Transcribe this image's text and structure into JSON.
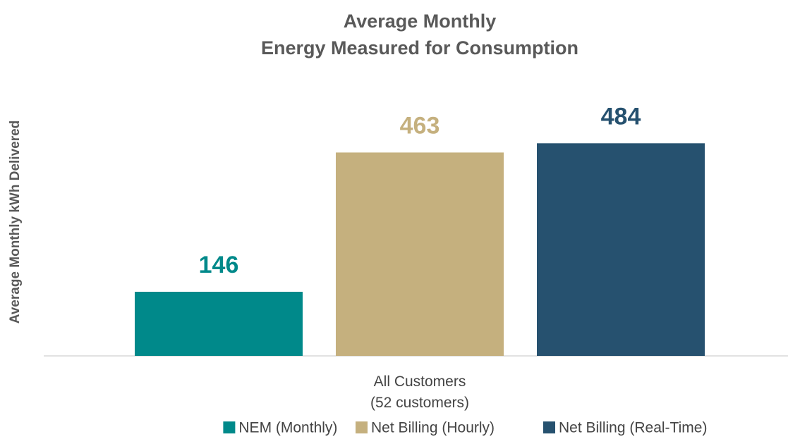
{
  "chart_data": {
    "type": "bar",
    "title": [
      "Average Monthly",
      "Energy Measured for Consumption"
    ],
    "y_label": "Average Monthly kWh Delivered",
    "categories": [
      "All Customers\n(52 customers)"
    ],
    "series": [
      {
        "name": "NEM (Monthly)",
        "color": "#00898a",
        "values": [
          146
        ]
      },
      {
        "name": "Net Billing (Hourly)",
        "color": "#c5b07e",
        "values": [
          463
        ]
      },
      {
        "name": "Net Billing (Real-Time)",
        "color": "#26516f",
        "values": [
          484
        ]
      }
    ],
    "ylim": [
      0,
      600
    ]
  }
}
